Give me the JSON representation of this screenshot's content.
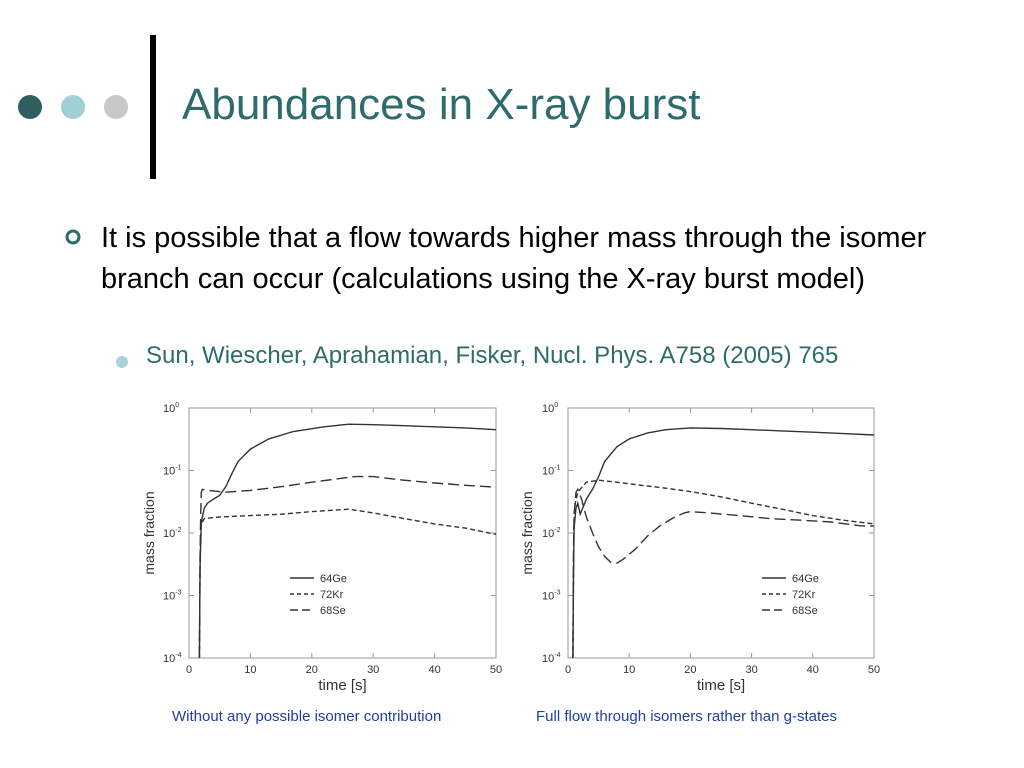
{
  "slide": {
    "title": "Abundances in X-ray burst",
    "bullet": "It is possible that a flow towards higher mass through the isomer branch can occur (calculations using the X-ray burst model)",
    "subbullet": "Sun, Wiescher, Aprahamian, Fisker, Nucl. Phys. A758 (2005) 765",
    "colors": {
      "title": "#2f6b6b",
      "dot1": "#2f5f5f",
      "dot2": "#9fd0d4",
      "dot3": "#c8c8c8",
      "caption": "#1f3f9f"
    }
  },
  "chart_data": [
    {
      "type": "line",
      "caption": "Without any possible isomer contribution",
      "xlabel": "time   [s]",
      "ylabel": "mass fraction",
      "xlim": [
        0,
        50
      ],
      "ylim": [
        0.0001,
        1
      ],
      "yscale": "log",
      "xticks": [
        "0",
        "10",
        "20",
        "30",
        "40",
        "50"
      ],
      "yticks": [
        {
          "base": "10",
          "exp": "0"
        },
        {
          "base": "10",
          "exp": "-1"
        },
        {
          "base": "10",
          "exp": "-2"
        },
        {
          "base": "10",
          "exp": "-3"
        },
        {
          "base": "10",
          "exp": "-4"
        }
      ],
      "legend_position": "lower-left",
      "series": [
        {
          "name": "64Ge",
          "dash": "solid",
          "points": [
            [
              1.7,
              0.0001
            ],
            [
              1.8,
              0.003
            ],
            [
              2.0,
              0.015
            ],
            [
              2.5,
              0.025
            ],
            [
              3,
              0.03
            ],
            [
              4,
              0.035
            ],
            [
              5,
              0.04
            ],
            [
              6,
              0.055
            ],
            [
              7,
              0.09
            ],
            [
              8,
              0.14
            ],
            [
              10,
              0.22
            ],
            [
              13,
              0.32
            ],
            [
              17,
              0.42
            ],
            [
              22,
              0.5
            ],
            [
              26,
              0.55
            ],
            [
              30,
              0.54
            ],
            [
              35,
              0.52
            ],
            [
              40,
              0.5
            ],
            [
              45,
              0.48
            ],
            [
              50,
              0.45
            ]
          ]
        },
        {
          "name": "72Kr",
          "dash": "short",
          "points": [
            [
              1.7,
              0.0001
            ],
            [
              1.8,
              0.004
            ],
            [
              2.0,
              0.014
            ],
            [
              2.5,
              0.017
            ],
            [
              5,
              0.018
            ],
            [
              10,
              0.019
            ],
            [
              15,
              0.02
            ],
            [
              20,
              0.022
            ],
            [
              26,
              0.024
            ],
            [
              30,
              0.021
            ],
            [
              35,
              0.017
            ],
            [
              40,
              0.014
            ],
            [
              45,
              0.012
            ],
            [
              50,
              0.0095
            ]
          ]
        },
        {
          "name": "68Se",
          "dash": "long",
          "points": [
            [
              1.7,
              0.0001
            ],
            [
              1.8,
              0.005
            ],
            [
              1.9,
              0.02
            ],
            [
              2.0,
              0.045
            ],
            [
              2.2,
              0.05
            ],
            [
              3,
              0.048
            ],
            [
              6,
              0.045
            ],
            [
              10,
              0.048
            ],
            [
              15,
              0.055
            ],
            [
              20,
              0.065
            ],
            [
              27,
              0.08
            ],
            [
              30,
              0.08
            ],
            [
              35,
              0.07
            ],
            [
              40,
              0.063
            ],
            [
              45,
              0.058
            ],
            [
              50,
              0.054
            ]
          ]
        }
      ]
    },
    {
      "type": "line",
      "caption": "Full flow through isomers rather than g-states",
      "xlabel": "time   [s]",
      "ylabel": "mass fraction",
      "xlim": [
        0,
        50
      ],
      "ylim": [
        0.0001,
        1
      ],
      "yscale": "log",
      "xticks": [
        "0",
        "10",
        "20",
        "30",
        "40",
        "50"
      ],
      "yticks": [
        {
          "base": "10",
          "exp": "0"
        },
        {
          "base": "10",
          "exp": "-1"
        },
        {
          "base": "10",
          "exp": "-2"
        },
        {
          "base": "10",
          "exp": "-3"
        },
        {
          "base": "10",
          "exp": "-4"
        }
      ],
      "legend_position": "lower-right",
      "series": [
        {
          "name": "64Ge",
          "dash": "solid",
          "points": [
            [
              0.8,
              0.0001
            ],
            [
              0.9,
              0.002
            ],
            [
              1.0,
              0.012
            ],
            [
              1.3,
              0.025
            ],
            [
              1.6,
              0.03
            ],
            [
              2,
              0.02
            ],
            [
              2.4,
              0.025
            ],
            [
              3,
              0.035
            ],
            [
              4,
              0.05
            ],
            [
              5,
              0.08
            ],
            [
              6,
              0.14
            ],
            [
              8,
              0.24
            ],
            [
              10,
              0.32
            ],
            [
              13,
              0.4
            ],
            [
              16,
              0.45
            ],
            [
              20,
              0.48
            ],
            [
              25,
              0.47
            ],
            [
              30,
              0.45
            ],
            [
              35,
              0.43
            ],
            [
              40,
              0.41
            ],
            [
              45,
              0.39
            ],
            [
              50,
              0.37
            ]
          ]
        },
        {
          "name": "72Kr",
          "dash": "short",
          "points": [
            [
              0.8,
              0.0001
            ],
            [
              0.9,
              0.003
            ],
            [
              1.0,
              0.015
            ],
            [
              1.2,
              0.03
            ],
            [
              1.6,
              0.045
            ],
            [
              2,
              0.05
            ],
            [
              3,
              0.065
            ],
            [
              5,
              0.07
            ],
            [
              8,
              0.065
            ],
            [
              12,
              0.058
            ],
            [
              16,
              0.052
            ],
            [
              20,
              0.046
            ],
            [
              25,
              0.038
            ],
            [
              30,
              0.03
            ],
            [
              35,
              0.024
            ],
            [
              40,
              0.019
            ],
            [
              45,
              0.016
            ],
            [
              50,
              0.014
            ]
          ]
        },
        {
          "name": "68Se",
          "dash": "long",
          "points": [
            [
              0.8,
              0.0001
            ],
            [
              0.9,
              0.005
            ],
            [
              1.0,
              0.02
            ],
            [
              1.3,
              0.045
            ],
            [
              1.6,
              0.05
            ],
            [
              2.2,
              0.035
            ],
            [
              3,
              0.018
            ],
            [
              4,
              0.01
            ],
            [
              5,
              0.006
            ],
            [
              6,
              0.0042
            ],
            [
              7,
              0.0034
            ],
            [
              8,
              0.0033
            ],
            [
              9,
              0.0038
            ],
            [
              11,
              0.0055
            ],
            [
              13,
              0.009
            ],
            [
              15,
              0.013
            ],
            [
              17,
              0.017
            ],
            [
              19,
              0.021
            ],
            [
              20,
              0.022
            ],
            [
              23,
              0.021
            ],
            [
              28,
              0.019
            ],
            [
              33,
              0.017
            ],
            [
              38,
              0.016
            ],
            [
              43,
              0.015
            ],
            [
              48,
              0.013
            ],
            [
              50,
              0.013
            ]
          ]
        }
      ]
    }
  ]
}
